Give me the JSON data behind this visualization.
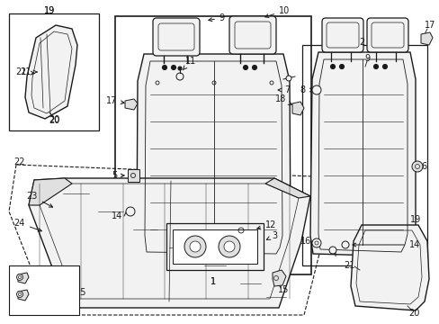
{
  "bg_color": "#ffffff",
  "line_color": "#1a1a1a",
  "text_color": "#1a1a1a",
  "gray_fill": "#f2f2f2",
  "mid_fill": "#e0e0e0",
  "dark_fill": "#c8c8c8"
}
